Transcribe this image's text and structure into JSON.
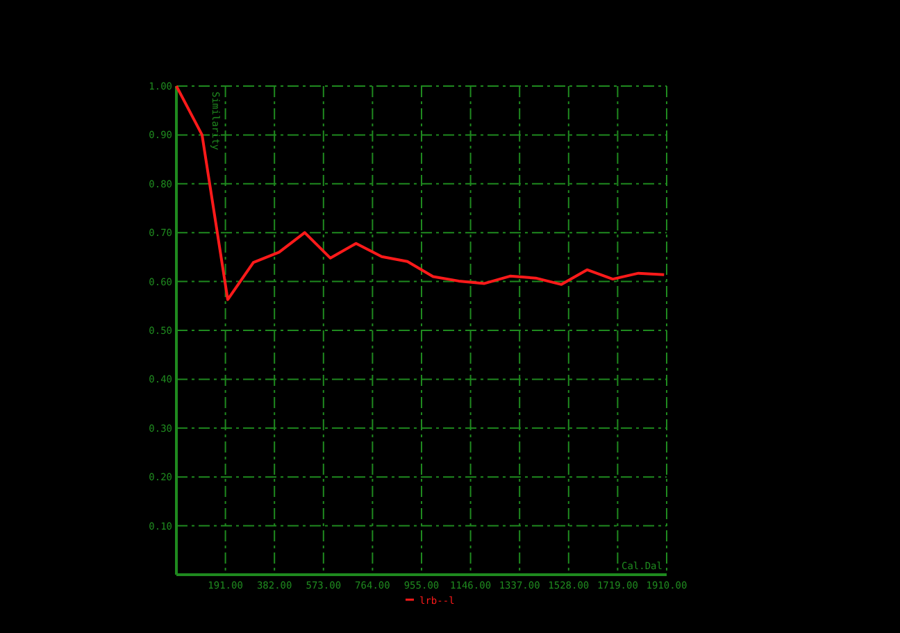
{
  "chart_data": {
    "type": "line",
    "xlabel": "Cal.Dal",
    "ylabel": "Similarity",
    "x": [
      0,
      100,
      200,
      300,
      400,
      500,
      600,
      700,
      800,
      900,
      1000,
      1100,
      1200,
      1300,
      1400,
      1500,
      1600,
      1700,
      1800,
      1900
    ],
    "series": [
      {
        "name": "lrb--l",
        "color": "#ff1a1a",
        "values": [
          1.0,
          0.9,
          0.563,
          0.639,
          0.66,
          0.7,
          0.648,
          0.678,
          0.651,
          0.641,
          0.61,
          0.601,
          0.596,
          0.611,
          0.607,
          0.594,
          0.624,
          0.605,
          0.617,
          0.614
        ]
      }
    ],
    "xlim": [
      0,
      1910
    ],
    "xticks": [
      {
        "value": 191,
        "label": "191.00"
      },
      {
        "value": 382,
        "label": "382.00"
      },
      {
        "value": 573,
        "label": "573.00"
      },
      {
        "value": 764,
        "label": "764.00"
      },
      {
        "value": 955,
        "label": "955.00"
      },
      {
        "value": 1146,
        "label": "1146.00"
      },
      {
        "value": 1337,
        "label": "1337.00"
      },
      {
        "value": 1528,
        "label": "1528.00"
      },
      {
        "value": 1719,
        "label": "1719.00"
      },
      {
        "value": 1910,
        "label": "1910.00"
      }
    ],
    "ylim": [
      0,
      1
    ],
    "yticks": [
      {
        "value": 0.1,
        "label": "0.10"
      },
      {
        "value": 0.2,
        "label": "0.20"
      },
      {
        "value": 0.3,
        "label": "0.30"
      },
      {
        "value": 0.4,
        "label": "0.40"
      },
      {
        "value": 0.5,
        "label": "0.50"
      },
      {
        "value": 0.6,
        "label": "0.60"
      },
      {
        "value": 0.7,
        "label": "0.70"
      },
      {
        "value": 0.8,
        "label": "0.80"
      },
      {
        "value": 0.9,
        "label": "0.90"
      },
      {
        "value": 1.0,
        "label": "1.00"
      }
    ],
    "grid": true,
    "legend": "bottom",
    "marker": "none",
    "line_style": "solid"
  }
}
